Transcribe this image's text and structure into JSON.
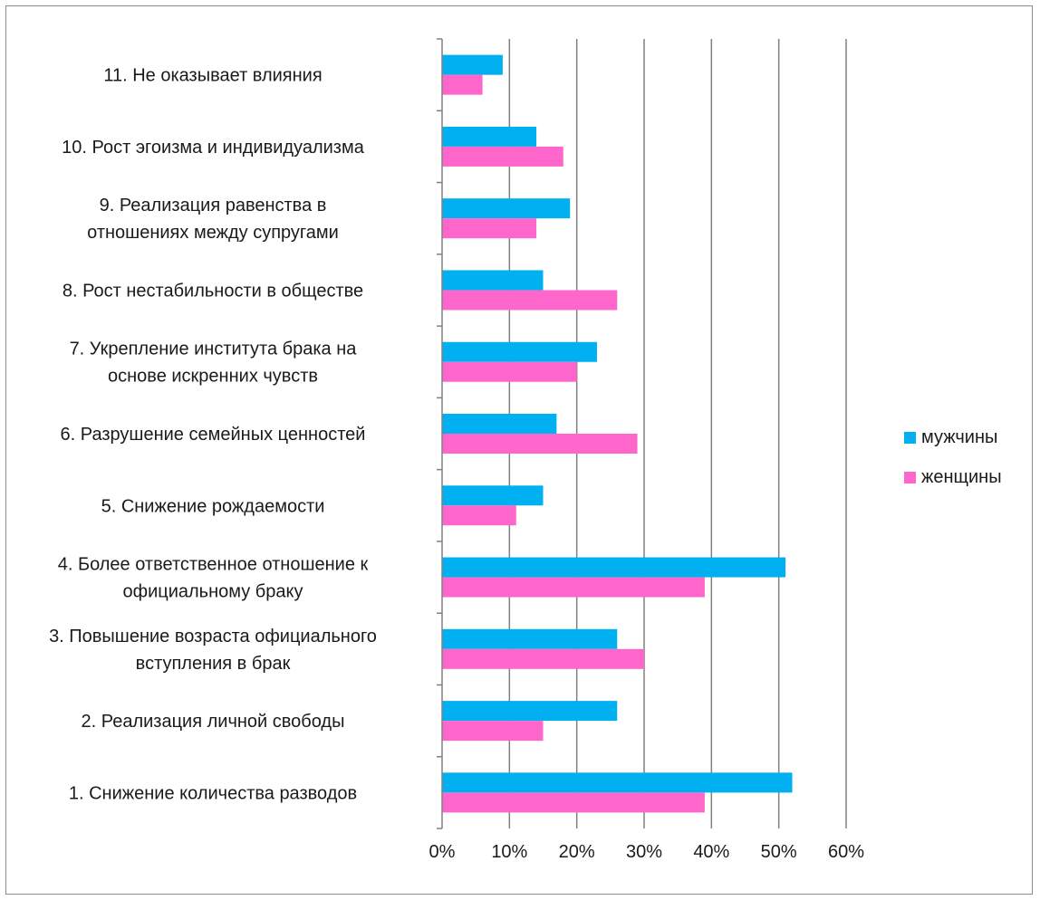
{
  "chart_data": {
    "type": "bar",
    "orientation": "horizontal",
    "categories": [
      "1. Снижение количества разводов",
      "2. Реализация личной свободы",
      "3. Повышение возраста официального вступления в брак",
      "4. Более ответственное отношение к официальному браку",
      "5. Снижение рождаемости",
      "6. Разрушение семейных ценностей",
      "7. Укрепление института брака на основе искренних чувств",
      "8. Рост нестабильности в обществе",
      "9. Реализация равенства в отношениях между супругами",
      "10.  Рост эгоизма и индивидуализма",
      "11.  Не оказывает влияния"
    ],
    "category_lines": [
      [
        "1. Снижение количества разводов"
      ],
      [
        "2. Реализация личной свободы"
      ],
      [
        "3. Повышение возраста официального",
        "вступления в брак"
      ],
      [
        "4. Более ответственное отношение к",
        "официальному браку"
      ],
      [
        "5. Снижение рождаемости"
      ],
      [
        "6. Разрушение семейных ценностей"
      ],
      [
        "7. Укрепление института брака на",
        "основе искренних чувств"
      ],
      [
        "8. Рост нестабильности в обществе"
      ],
      [
        "9. Реализация равенства в",
        "отношениях между супругами"
      ],
      [
        "10.  Рост эгоизма и индивидуализма"
      ],
      [
        "11.  Не оказывает влияния"
      ]
    ],
    "series": [
      {
        "name": "мужчины",
        "color": "#00b0f0",
        "values": [
          0.52,
          0.26,
          0.26,
          0.51,
          0.15,
          0.17,
          0.23,
          0.15,
          0.19,
          0.14,
          0.09
        ]
      },
      {
        "name": "женщины",
        "color": "#ff66cc",
        "values": [
          0.39,
          0.15,
          0.3,
          0.39,
          0.11,
          0.29,
          0.2,
          0.26,
          0.14,
          0.18,
          0.06
        ]
      }
    ],
    "xlim": [
      0,
      0.6
    ],
    "x_ticks": [
      "0%",
      "10%",
      "20%",
      "30%",
      "40%",
      "50%",
      "60%"
    ],
    "grid": true,
    "legend_position": "right",
    "title": "",
    "xlabel": "",
    "ylabel": ""
  }
}
